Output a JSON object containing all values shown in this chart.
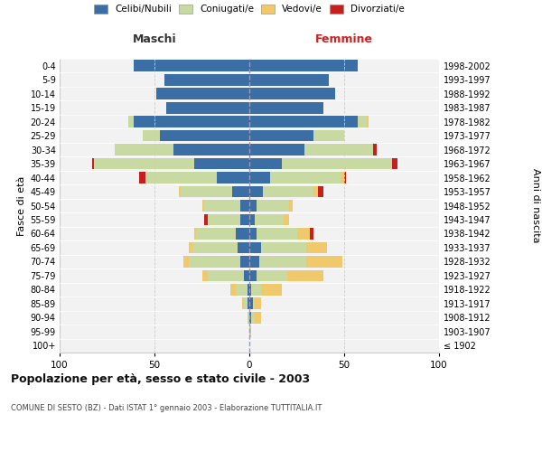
{
  "age_groups": [
    "100+",
    "95-99",
    "90-94",
    "85-89",
    "80-84",
    "75-79",
    "70-74",
    "65-69",
    "60-64",
    "55-59",
    "50-54",
    "45-49",
    "40-44",
    "35-39",
    "30-34",
    "25-29",
    "20-24",
    "15-19",
    "10-14",
    "5-9",
    "0-4"
  ],
  "birth_years": [
    "≤ 1902",
    "1903-1907",
    "1908-1912",
    "1913-1917",
    "1918-1922",
    "1923-1927",
    "1928-1932",
    "1933-1937",
    "1938-1942",
    "1943-1947",
    "1948-1952",
    "1953-1957",
    "1958-1962",
    "1963-1967",
    "1968-1972",
    "1973-1977",
    "1978-1982",
    "1983-1987",
    "1988-1992",
    "1993-1997",
    "1998-2002"
  ],
  "males_celibi": [
    0,
    0,
    0,
    1,
    1,
    3,
    5,
    6,
    7,
    5,
    5,
    9,
    17,
    29,
    40,
    47,
    61,
    44,
    49,
    45,
    61
  ],
  "males_coniugati": [
    0,
    0,
    1,
    2,
    6,
    19,
    27,
    24,
    21,
    17,
    19,
    27,
    38,
    53,
    31,
    9,
    3,
    0,
    0,
    0,
    0
  ],
  "males_vedovi": [
    0,
    0,
    0,
    1,
    3,
    3,
    3,
    2,
    1,
    0,
    1,
    1,
    0,
    0,
    0,
    0,
    0,
    0,
    0,
    0,
    0
  ],
  "males_divorziati": [
    0,
    0,
    0,
    0,
    0,
    0,
    0,
    0,
    0,
    2,
    0,
    0,
    3,
    1,
    0,
    0,
    0,
    0,
    0,
    0,
    0
  ],
  "females_nubili": [
    0,
    0,
    1,
    2,
    1,
    4,
    5,
    6,
    4,
    3,
    4,
    7,
    11,
    17,
    29,
    34,
    57,
    39,
    45,
    42,
    57
  ],
  "females_coniugate": [
    0,
    0,
    2,
    1,
    5,
    16,
    25,
    24,
    21,
    15,
    17,
    27,
    37,
    58,
    36,
    16,
    5,
    0,
    0,
    0,
    0
  ],
  "females_vedove": [
    0,
    1,
    3,
    3,
    11,
    19,
    19,
    11,
    7,
    3,
    2,
    2,
    2,
    0,
    0,
    0,
    1,
    0,
    0,
    0,
    0
  ],
  "females_divorziate": [
    0,
    0,
    0,
    0,
    0,
    0,
    0,
    0,
    2,
    0,
    0,
    3,
    1,
    3,
    2,
    0,
    0,
    0,
    0,
    0,
    0
  ],
  "colors": {
    "celibi": "#3B6EA5",
    "coniugati": "#C8D9A2",
    "vedovi": "#EFC96B",
    "divorziati": "#C42020"
  },
  "xlim": 100,
  "title": "Popolazione per età, sesso e stato civile - 2003",
  "subtitle": "COMUNE DI SESTO (BZ) - Dati ISTAT 1° gennaio 2003 - Elaborazione TUTTITALIA.IT",
  "ylabel_left": "Fasce di età",
  "ylabel_right": "Anni di nascita",
  "xlabel_left": "Maschi",
  "xlabel_right": "Femmine",
  "legend_labels": [
    "Celibi/Nubili",
    "Coniugati/e",
    "Vedovi/e",
    "Divorziati/e"
  ],
  "bg_color": "#FFFFFF",
  "plot_bg": "#F2F2F2"
}
